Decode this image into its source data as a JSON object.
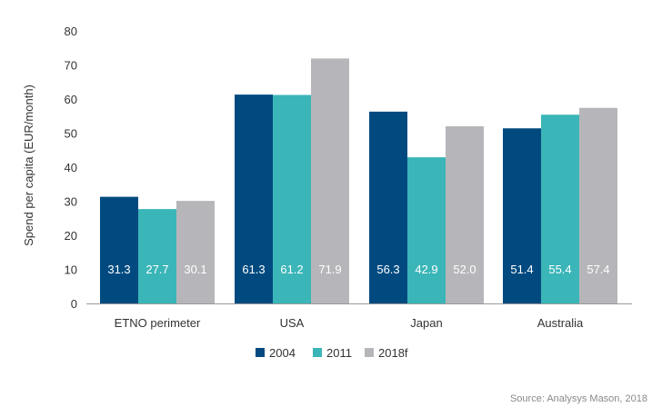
{
  "chart_data": {
    "type": "bar",
    "categories": [
      "ETNO perimeter",
      "USA",
      "Japan",
      "Australia"
    ],
    "series": [
      {
        "name": "2004",
        "values": [
          31.3,
          61.3,
          56.3,
          51.4
        ],
        "color": "#004a80"
      },
      {
        "name": "2011",
        "values": [
          27.7,
          61.2,
          42.9,
          55.4
        ],
        "color": "#3ab5b8"
      },
      {
        "name": "2018f",
        "values": [
          30.1,
          71.9,
          52.0,
          57.4
        ],
        "color": "#b6b6ba"
      }
    ],
    "ylabel": "Spend per capita (EUR/month)",
    "ylim": [
      0,
      80
    ],
    "yticks": [
      0,
      10,
      20,
      30,
      40,
      50,
      60,
      70,
      80
    ],
    "grid": false,
    "legend": "bottom-center",
    "data_label_decimals": 1,
    "source": "Source: Analysys Mason, 2018"
  }
}
